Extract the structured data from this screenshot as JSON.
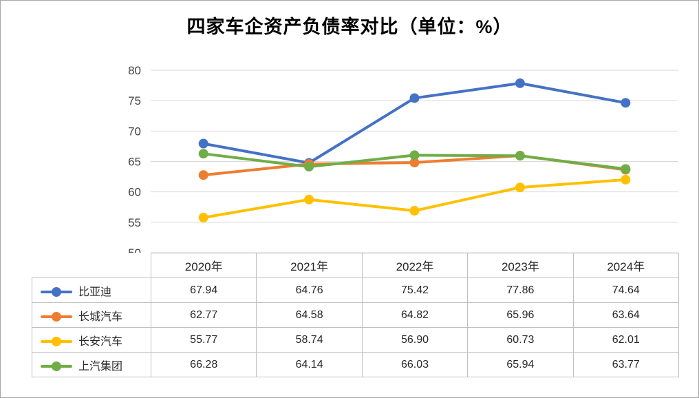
{
  "title": "四家车企资产负债率对比（单位：%）",
  "chart_data": {
    "type": "line",
    "categories": [
      "2020年",
      "2021年",
      "2022年",
      "2023年",
      "2024年"
    ],
    "series": [
      {
        "name": "比亚迪",
        "color": "#4472C4",
        "values": [
          67.94,
          64.76,
          75.42,
          77.86,
          74.64
        ]
      },
      {
        "name": "长城汽车",
        "color": "#ED7D31",
        "values": [
          62.77,
          64.58,
          64.82,
          65.96,
          63.64
        ]
      },
      {
        "name": "长安汽车",
        "color": "#FFC000",
        "values": [
          55.77,
          58.74,
          56.9,
          60.73,
          62.01
        ]
      },
      {
        "name": "上汽集团",
        "color": "#70AD47",
        "values": [
          66.28,
          64.14,
          66.03,
          65.94,
          63.77
        ]
      }
    ],
    "ylim": [
      50,
      80
    ],
    "ytick_step": 5,
    "ytick_labels": [
      "50",
      "55",
      "60",
      "65",
      "70",
      "75",
      "80"
    ],
    "grid": true,
    "gridline_color": "#D9D9D9",
    "axis_label_color": "#404040",
    "legend_position": "table-left",
    "value_decimals": 2
  }
}
